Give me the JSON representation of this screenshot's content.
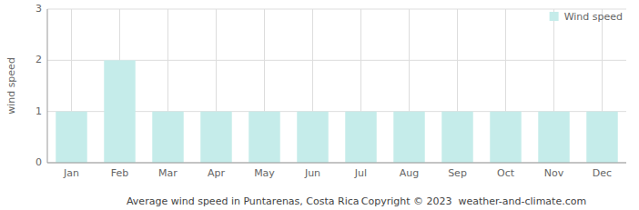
{
  "chart_data": {
    "type": "bar",
    "title": "Average wind speed in Puntarenas, Costa Rica",
    "annotations": [
      "Copyright © 2023  weather-and-climate.com"
    ],
    "categories": [
      "Jan",
      "Feb",
      "Mar",
      "Apr",
      "May",
      "Jun",
      "Jul",
      "Aug",
      "Sep",
      "Oct",
      "Nov",
      "Dec"
    ],
    "series": [
      {
        "name": "Wind speed",
        "color": "#c5ecea",
        "values": [
          1,
          2,
          1,
          1,
          1,
          1,
          1,
          1,
          1,
          1,
          1,
          1
        ]
      }
    ],
    "y_label": "wind speed",
    "ylim": [
      0,
      3
    ],
    "yticks": [
      0,
      1,
      2,
      3
    ],
    "grid": true,
    "legend": "upper right"
  }
}
